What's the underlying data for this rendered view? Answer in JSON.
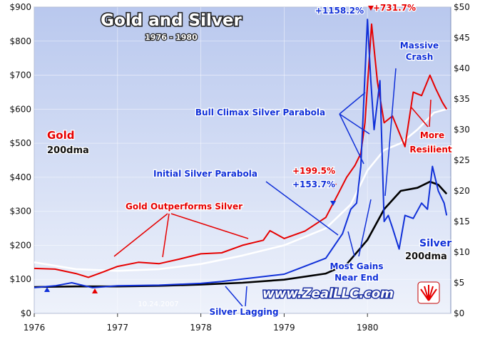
{
  "chart_data": {
    "type": "line",
    "title": "Gold and Silver",
    "subtitle": "1976 - 1980",
    "x_ticks": [
      "1976",
      "1977",
      "1978",
      "1979",
      "1980"
    ],
    "y_left_ticks": [
      "$0",
      "$100",
      "$200",
      "$300",
      "$400",
      "$500",
      "$600",
      "$700",
      "$800",
      "$900"
    ],
    "y_right_ticks": [
      "$0",
      "$5",
      "$10",
      "$15",
      "$20",
      "$25",
      "$30",
      "$35",
      "$40",
      "$45",
      "$50"
    ],
    "y_left_range": [
      0,
      900
    ],
    "y_right_range": [
      0,
      50
    ],
    "series": [
      {
        "name": "Gold",
        "axis": "left",
        "color": "#e60000",
        "x": [
          1976.0,
          1976.25,
          1976.5,
          1976.65,
          1976.8,
          1977.0,
          1977.25,
          1977.5,
          1977.75,
          1978.0,
          1978.25,
          1978.5,
          1978.75,
          1978.83,
          1979.0,
          1979.25,
          1979.5,
          1979.65,
          1979.75,
          1979.85,
          1979.92,
          1979.97,
          1980.05,
          1980.12,
          1980.2,
          1980.3,
          1980.45,
          1980.55,
          1980.65,
          1980.75,
          1980.82,
          1980.9,
          1980.95
        ],
        "y": [
          132,
          130,
          117,
          106,
          119,
          138,
          150,
          146,
          160,
          175,
          178,
          200,
          215,
          243,
          220,
          242,
          282,
          352,
          400,
          435,
          470,
          560,
          850,
          680,
          560,
          580,
          490,
          650,
          640,
          700,
          660,
          620,
          600
        ]
      },
      {
        "name": "200dma",
        "axis": "left",
        "color": "#ffffff",
        "x": [
          1976.0,
          1976.5,
          1977.0,
          1977.5,
          1978.0,
          1978.5,
          1979.0,
          1979.5,
          1979.8,
          1980.0,
          1980.2,
          1980.4,
          1980.6,
          1980.8,
          1980.95
        ],
        "y": [
          150,
          130,
          125,
          130,
          145,
          170,
          200,
          250,
          320,
          420,
          480,
          500,
          540,
          590,
          600
        ]
      },
      {
        "name": "Silver",
        "axis": "right",
        "color": "#1030d8",
        "x": [
          1976.0,
          1976.25,
          1976.45,
          1976.7,
          1977.0,
          1977.5,
          1978.0,
          1978.25,
          1978.5,
          1978.75,
          1979.0,
          1979.25,
          1979.5,
          1979.7,
          1979.8,
          1979.87,
          1979.92,
          1980.0,
          1980.04,
          1980.08,
          1980.15,
          1980.2,
          1980.25,
          1980.3,
          1980.38,
          1980.45,
          1980.55,
          1980.65,
          1980.72,
          1980.78,
          1980.85,
          1980.92,
          1980.95
        ],
        "y": [
          4.2,
          4.5,
          5.0,
          4.2,
          4.5,
          4.6,
          4.9,
          5.2,
          5.6,
          6.0,
          6.4,
          7.7,
          9.0,
          13.0,
          17.0,
          18.0,
          24.0,
          48.0,
          38.0,
          30.0,
          38.0,
          15.0,
          16.0,
          14.0,
          10.5,
          16.0,
          15.5,
          18.0,
          17.0,
          24.0,
          20.0,
          18.0,
          16.0
        ]
      },
      {
        "name": "200dma",
        "axis": "right",
        "color": "#000000",
        "x": [
          1976.0,
          1976.5,
          1977.0,
          1977.5,
          1978.0,
          1978.5,
          1979.0,
          1979.5,
          1979.75,
          1980.0,
          1980.2,
          1980.4,
          1980.6,
          1980.75,
          1980.85,
          1980.95
        ],
        "y": [
          4.3,
          4.4,
          4.4,
          4.5,
          4.7,
          5.0,
          5.5,
          6.5,
          8.0,
          12.0,
          17.0,
          20.0,
          20.5,
          21.5,
          21.0,
          19.5
        ]
      }
    ],
    "annotations": {
      "gold_label": "Gold",
      "gold_ma_label": "200dma",
      "silver_label": "Silver",
      "silver_ma_label": "200dma",
      "gold_outperforms": "Gold Outperforms Silver",
      "initial_parabola": "Initial Silver Parabola",
      "bull_climax": "Bull Climax Silver Parabola",
      "massive": "Massive",
      "crash": "Crash",
      "more": "More",
      "resilient": "Resilient",
      "most_gains": "Most Gains",
      "near_end": "Near End",
      "silver_lagging": "Silver Lagging",
      "gold_gain_1": "+199.5%",
      "silver_gain_1": "+153.7%",
      "silver_gain_2": "+1158.2%",
      "gold_gain_2": "+731.7%",
      "watermark": "www.ZealLLC.com",
      "date_stamp": "10.24.2007"
    }
  }
}
